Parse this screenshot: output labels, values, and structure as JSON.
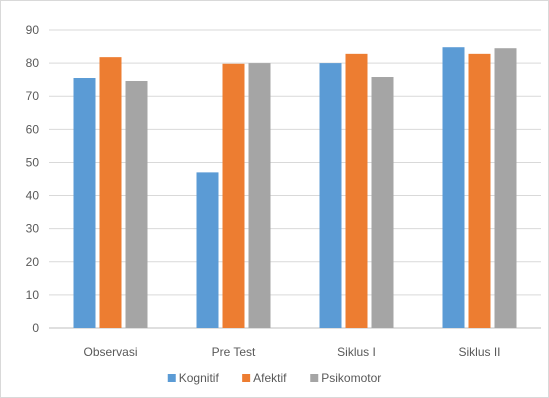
{
  "chart_data": {
    "type": "bar",
    "categories": [
      "Observasi",
      "Pre Test",
      "Siklus I",
      "Siklus II"
    ],
    "series": [
      {
        "name": "Kognitif",
        "color": "#5b9bd5",
        "values": [
          75.5,
          47,
          80,
          84.8
        ]
      },
      {
        "name": "Afektif",
        "color": "#ed7d31",
        "values": [
          81.8,
          79.8,
          82.8,
          82.8
        ]
      },
      {
        "name": "Psikomotor",
        "color": "#a5a5a5",
        "values": [
          74.6,
          80,
          75.8,
          84.5
        ]
      }
    ],
    "ylim": [
      0,
      90
    ],
    "yticks": [
      0,
      10,
      20,
      30,
      40,
      50,
      60,
      70,
      80,
      90
    ],
    "grid": true,
    "legend_position": "bottom",
    "title": "",
    "xlabel": "",
    "ylabel": ""
  }
}
